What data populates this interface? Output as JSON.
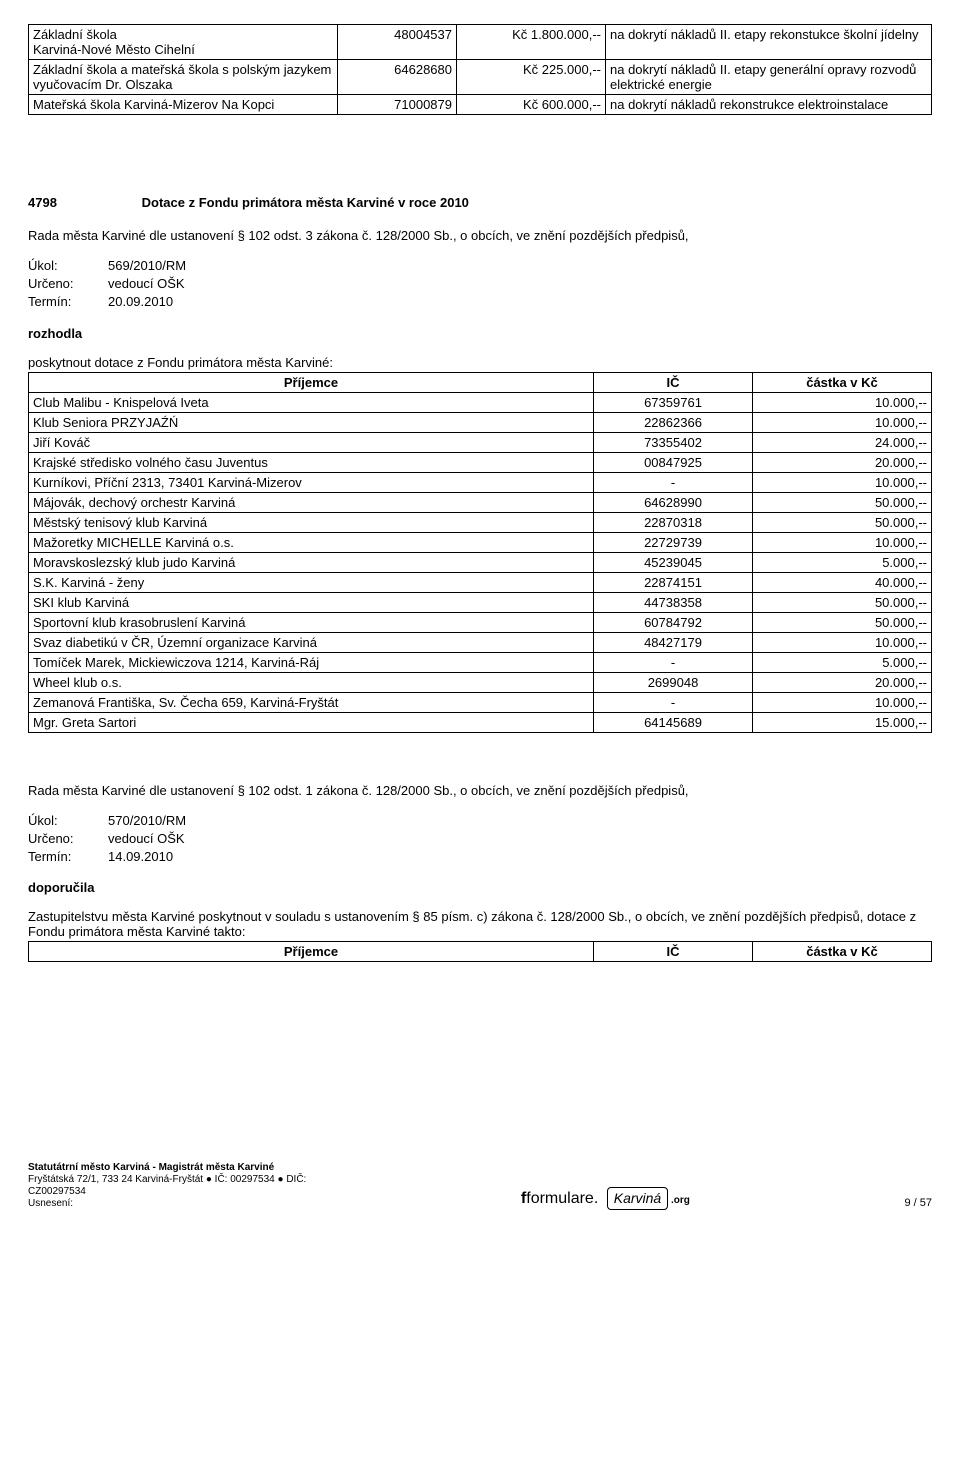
{
  "table1": {
    "rows": [
      {
        "name": "Základní škola\nKarviná-Nové Město Cihelní",
        "ic": "48004537",
        "amount": "Kč 1.800.000,--",
        "purpose": "na dokrytí nákladů II. etapy rekonstukce školní jídelny"
      },
      {
        "name": "Základní škola a mateřská škola s polským jazykem vyučovacím Dr. Olszaka",
        "ic": "64628680",
        "amount": "Kč 225.000,--",
        "purpose": "na dokrytí nákladů II. etapy generální opravy rozvodů elektrické energie"
      },
      {
        "name": "Mateřská škola Karviná-Mizerov Na Kopci",
        "ic": "71000879",
        "amount": "Kč 600.000,--",
        "purpose": "na dokrytí nákladů rekonstrukce elektroinstalace"
      }
    ]
  },
  "resolution1": {
    "number": "4798",
    "title": "Dotace z Fondu primátora města Karviné v roce 2010",
    "intro": "Rada města Karviné dle ustanovení § 102 odst. 3 zákona č. 128/2000 Sb., o obcích, ve znění pozdějších předpisů,",
    "meta": {
      "ukol_label": "Úkol:",
      "ukol": "569/2010/RM",
      "urceno_label": "Určeno:",
      "urceno": "vedoucí OŠK",
      "termin_label": "Termín:",
      "termin": "20.09.2010"
    },
    "action": "rozhodla",
    "lead": "poskytnout dotace z Fondu primátora města Karviné:",
    "headers": {
      "prijemce": "Příjemce",
      "ic": "IČ",
      "castka": "částka v Kč"
    },
    "rows": [
      {
        "name": "Club Malibu - Knispelová Iveta",
        "ic": "67359761",
        "amount": "10.000,--"
      },
      {
        "name": "Klub Seniora PRZYJAŹŃ",
        "ic": "22862366",
        "amount": "10.000,--"
      },
      {
        "name": "Jiří Kováč",
        "ic": "73355402",
        "amount": "24.000,--"
      },
      {
        "name": "Krajské středisko volného času Juventus",
        "ic": "00847925",
        "amount": "20.000,--"
      },
      {
        "name": "Kurníkovi, Příční 2313, 73401 Karviná-Mizerov",
        "ic": "-",
        "amount": "10.000,--"
      },
      {
        "name": "Májovák, dechový orchestr Karviná",
        "ic": "64628990",
        "amount": "50.000,--"
      },
      {
        "name": "Městský tenisový klub Karviná",
        "ic": "22870318",
        "amount": "50.000,--"
      },
      {
        "name": "Mažoretky MICHELLE Karviná o.s.",
        "ic": "22729739",
        "amount": "10.000,--"
      },
      {
        "name": "Moravskoslezský klub judo Karviná",
        "ic": "45239045",
        "amount": "5.000,--"
      },
      {
        "name": "S.K. Karviná - ženy",
        "ic": "22874151",
        "amount": "40.000,--"
      },
      {
        "name": "SKI klub Karviná",
        "ic": "44738358",
        "amount": "50.000,--"
      },
      {
        "name": "Sportovní klub krasobruslení Karviná",
        "ic": "60784792",
        "amount": "50.000,--"
      },
      {
        "name": "Svaz diabetikú v ČR, Územní organizace Karviná",
        "ic": "48427179",
        "amount": "10.000,--"
      },
      {
        "name": "Tomíček Marek, Mickiewiczova 1214, Karviná-Ráj",
        "ic": "-",
        "amount": "5.000,--"
      },
      {
        "name": "Wheel klub o.s.",
        "ic": "2699048",
        "amount": "20.000,--"
      },
      {
        "name": "Zemanová Františka, Sv. Čecha 659, Karviná-Fryštát",
        "ic": "-",
        "amount": "10.000,--"
      },
      {
        "name": "Mgr. Greta Sartori",
        "ic": "64145689",
        "amount": "15.000,--"
      }
    ]
  },
  "resolution2": {
    "intro": "Rada města Karviné dle ustanovení § 102 odst. 1 zákona č. 128/2000 Sb., o obcích, ve znění pozdějších předpisů,",
    "meta": {
      "ukol_label": "Úkol:",
      "ukol": "570/2010/RM",
      "urceno_label": "Určeno:",
      "urceno": "vedoucí OŠK",
      "termin_label": "Termín:",
      "termin": "14.09.2010"
    },
    "action": "doporučila",
    "lead": "Zastupitelstvu města Karviné poskytnout v souladu s ustanovením § 85 písm. c) zákona č. 128/2000 Sb., o obcích, ve znění pozdějších předpisů, dotace z Fondu primátora města Karviné takto:",
    "headers": {
      "prijemce": "Příjemce",
      "ic": "IČ",
      "castka": "částka v Kč"
    }
  },
  "footer": {
    "line1": "Statutátrní město Karviná - Magistrát města Karviné",
    "line2": "Fryštátská 72/1, 733 24 Karviná-Fryštát ● IČ: 00297534 ● DIČ:",
    "line3": "CZ00297534",
    "line4": "Usnesení:",
    "page": "9 / 57",
    "logo1": "formulare",
    "logo2": "Karviná",
    "logo3": ".org"
  }
}
